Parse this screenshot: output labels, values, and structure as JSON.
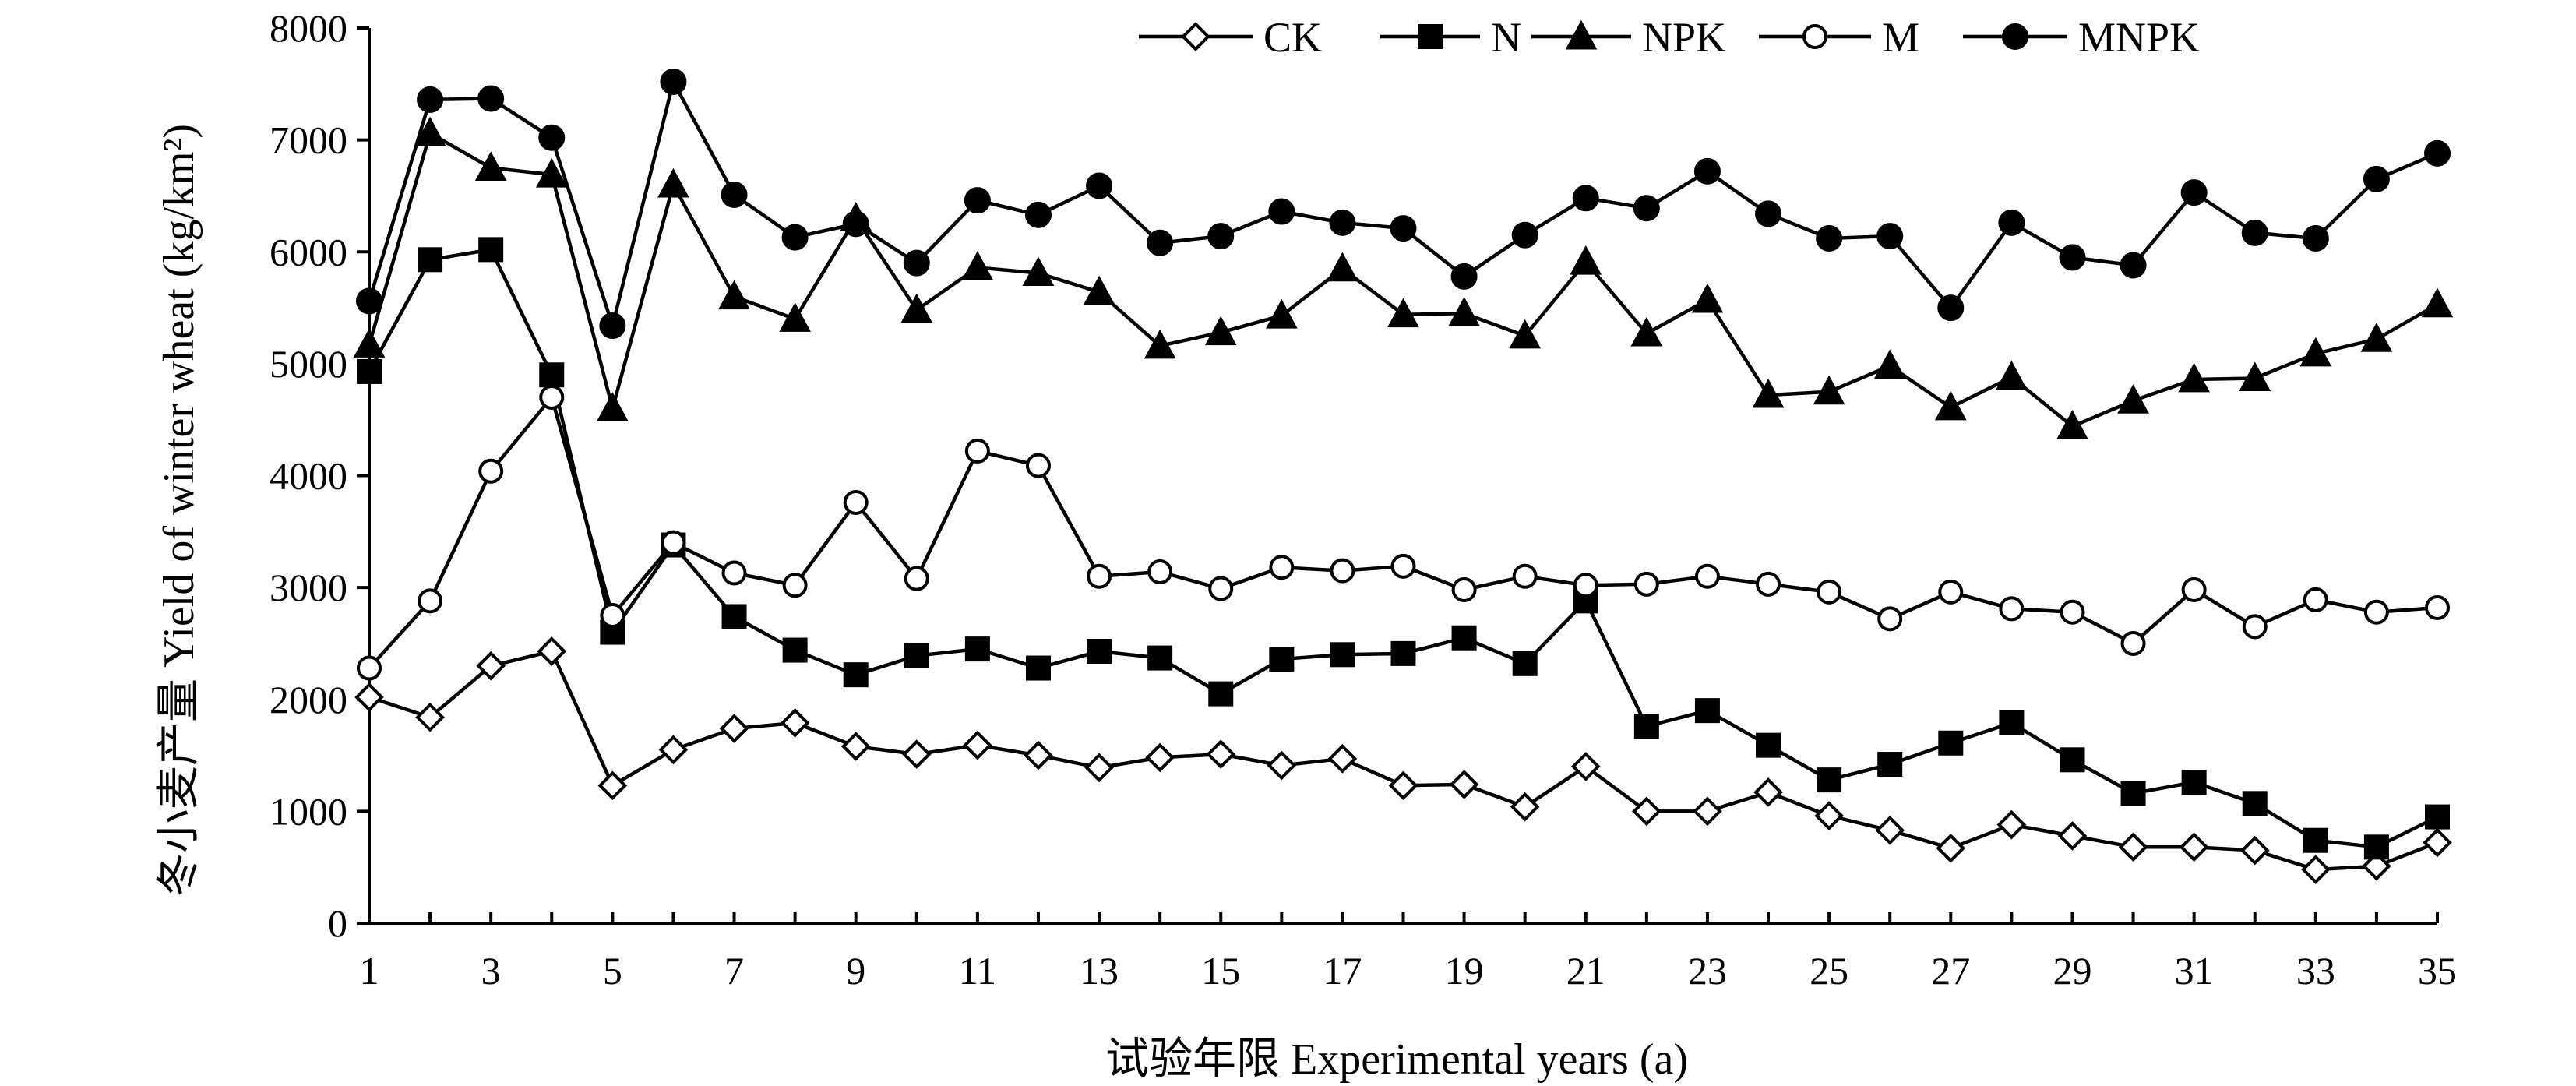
{
  "chart_data": {
    "type": "line",
    "xlabel": "试验年限 Experimental years (a)",
    "ylabel": "冬小麦产量 Yield of winter wheat (kg/km²)",
    "ylim": [
      0,
      8000
    ],
    "xlim": [
      1,
      35
    ],
    "yticks": [
      0,
      1000,
      2000,
      3000,
      4000,
      5000,
      6000,
      7000,
      8000
    ],
    "xticks": [
      1,
      3,
      5,
      7,
      9,
      11,
      13,
      15,
      17,
      19,
      21,
      23,
      25,
      27,
      29,
      31,
      33,
      35
    ],
    "grid": false,
    "legend_position": "top",
    "x": [
      1,
      2,
      3,
      4,
      5,
      6,
      7,
      8,
      9,
      10,
      11,
      12,
      13,
      14,
      15,
      16,
      17,
      18,
      19,
      20,
      21,
      22,
      23,
      24,
      25,
      26,
      27,
      28,
      29,
      30,
      31,
      32,
      33,
      34,
      35
    ],
    "series": [
      {
        "name": "CK",
        "marker": "diamond-open",
        "values": [
          2020,
          1840,
          2300,
          2430,
          1230,
          1550,
          1740,
          1790,
          1580,
          1510,
          1590,
          1500,
          1390,
          1480,
          1510,
          1410,
          1470,
          1230,
          1240,
          1040,
          1400,
          1000,
          1000,
          1170,
          960,
          830,
          670,
          880,
          780,
          680,
          680,
          650,
          480,
          510,
          720
        ]
      },
      {
        "name": "N",
        "marker": "square-filled",
        "values": [
          4930,
          5930,
          6020,
          4900,
          2600,
          3380,
          2740,
          2440,
          2220,
          2390,
          2450,
          2280,
          2430,
          2370,
          2050,
          2360,
          2400,
          2410,
          2550,
          2320,
          2880,
          1760,
          1900,
          1590,
          1280,
          1420,
          1610,
          1790,
          1460,
          1160,
          1260,
          1070,
          740,
          680,
          950
        ]
      },
      {
        "name": "NPK",
        "marker": "triangle-filled",
        "values": [
          5170,
          7060,
          6750,
          6690,
          4600,
          6600,
          5600,
          5400,
          6300,
          5480,
          5860,
          5810,
          5640,
          5160,
          5280,
          5430,
          5850,
          5440,
          5450,
          5250,
          5910,
          5270,
          5570,
          4720,
          4750,
          4980,
          4610,
          4880,
          4440,
          4670,
          4860,
          4870,
          5090,
          5220,
          5530
        ]
      },
      {
        "name": "M",
        "marker": "circle-open",
        "values": [
          2280,
          2880,
          4040,
          4700,
          2750,
          3400,
          3130,
          3020,
          3760,
          3080,
          4220,
          4090,
          3100,
          3140,
          2990,
          3180,
          3150,
          3190,
          2980,
          3100,
          3020,
          3030,
          3100,
          3030,
          2960,
          2720,
          2960,
          2810,
          2780,
          2500,
          2980,
          2650,
          2890,
          2780,
          2820
        ]
      },
      {
        "name": "MNPK",
        "marker": "circle-filled",
        "values": [
          5560,
          7360,
          7370,
          7020,
          5340,
          7520,
          6510,
          6130,
          6250,
          5900,
          6460,
          6330,
          6590,
          6080,
          6140,
          6360,
          6260,
          6210,
          5780,
          6150,
          6480,
          6390,
          6720,
          6340,
          6120,
          6140,
          5500,
          6260,
          5950,
          5880,
          6530,
          6170,
          6120,
          6650,
          6880
        ]
      }
    ]
  }
}
